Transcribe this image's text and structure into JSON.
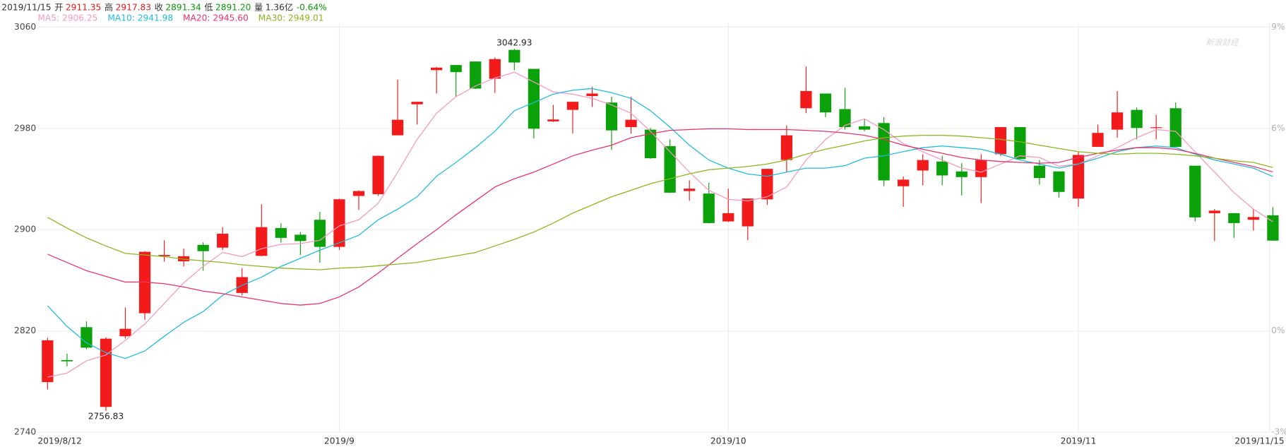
{
  "chart_data": {
    "type": "candlestick",
    "header": {
      "date": "2019/11/15",
      "items": [
        {
          "label": "开",
          "value": "2911.35",
          "color": "#e41b1b"
        },
        {
          "label": "高",
          "value": "2917.83",
          "color": "#e41b1b"
        },
        {
          "label": "收",
          "value": "2891.34",
          "color": "#0a9a0a"
        },
        {
          "label": "低",
          "value": "2891.20",
          "color": "#0a9a0a"
        },
        {
          "label": "量",
          "value": "1.36亿",
          "color": "#333333"
        }
      ],
      "change": "-0.64%",
      "change_color": "#0a9a0a"
    },
    "watermark": "新浪财经",
    "categories": [
      "2019/8/12",
      null,
      null,
      null,
      null,
      null,
      null,
      null,
      null,
      null,
      null,
      null,
      null,
      null,
      null,
      "2019/9",
      null,
      null,
      null,
      null,
      null,
      null,
      null,
      null,
      null,
      null,
      null,
      null,
      null,
      null,
      null,
      null,
      null,
      null,
      null,
      "2019/10",
      null,
      null,
      null,
      null,
      null,
      null,
      null,
      null,
      null,
      null,
      null,
      null,
      null,
      null,
      null,
      null,
      null,
      "2019/11",
      null,
      null,
      null,
      null,
      null,
      null,
      null,
      null,
      null,
      "2019/11/15"
    ],
    "up_color": "#f21a1a",
    "down_color": "#0aa10a",
    "open": [
      2779.6,
      2797,
      2823,
      2760,
      2815.8,
      2834,
      2879,
      2875,
      2888,
      2885.8,
      2850,
      2879.3,
      2901.3,
      2896,
      2907.8,
      2886.4,
      2926.6,
      2928,
      2974.5,
      2999,
      3026,
      3030,
      3032.8,
      3019.2,
      3042,
      3027,
      2985.5,
      2994.6,
      3005.5,
      3000.4,
      2981,
      2979,
      2966,
      2930.5,
      2928.5,
      2906.5,
      2902.6,
      2923.9,
      2955,
      2995.9,
      3007.5,
      2995.2,
      2981.6,
      2984.2,
      2934.3,
      2946.7,
      2953.8,
      2946,
      2941.5,
      2959.6,
      2981,
      2950.5,
      2946,
      2924.6,
      2965.4,
      2979,
      2994.6,
      2980.3,
      2995.9,
      2950.5,
      2913,
      2913,
      2907.8,
      2911.35
    ],
    "high": [
      2814.5,
      2802,
      2827.5,
      2815,
      2838.5,
      2883,
      2891.6,
      2885,
      2890,
      2902,
      2869.6,
      2920,
      2905,
      2898,
      2914,
      2924.5,
      2931,
      2958.5,
      3018.5,
      3001,
      3028.5,
      3030.2,
      3033,
      3036,
      3042.93,
      3027,
      2998.5,
      3001,
      3013,
      3005,
      3005,
      2980.3,
      2971.3,
      2939,
      2937,
      2932.4,
      2924.6,
      2948,
      2982.3,
      3028.9,
      3007.5,
      3012,
      2987.5,
      2988.8,
      2942,
      2959.6,
      2958.3,
      2952.5,
      2959.6,
      2981,
      2981,
      2955,
      2946,
      2961.6,
      2983,
      3009.5,
      2996.5,
      2990.7,
      3000.4,
      2950.5,
      2916.2,
      2913,
      2916.2,
      2917.83
    ],
    "low": [
      2773.7,
      2792,
      2805.5,
      2756.83,
      2814,
      2828.8,
      2874.8,
      2871,
      2867.6,
      2884,
      2848,
      2879,
      2889.7,
      2880,
      2874,
      2884,
      2915.6,
      2926.6,
      2974.5,
      2983,
      3007.5,
      3005,
      3011,
      3008,
      3026,
      2972,
      2985,
      2976,
      2997,
      2963,
      2975.8,
      2956,
      2929,
      2922.7,
      2905,
      2906,
      2891.6,
      2919.5,
      2945.4,
      2992,
      2988.8,
      2979,
      2977.7,
      2934.3,
      2918,
      2935,
      2935,
      2927,
      2921,
      2958.3,
      2955.7,
      2935.6,
      2925.3,
      2918,
      2965.4,
      2972.6,
      2971.3,
      2971.3,
      2965.4,
      2906.5,
      2891,
      2893.5,
      2899.4,
      2891.2
    ],
    "close": [
      2812.6,
      2796,
      2806.8,
      2813.9,
      2821.7,
      2882.5,
      2880,
      2879,
      2883,
      2896.8,
      2862.5,
      2902,
      2893.5,
      2891,
      2886.4,
      2924,
      2930.5,
      2958.3,
      2986.8,
      3001,
      3028,
      3024.4,
      3011.4,
      3034.7,
      3032,
      2979.7,
      2987,
      3001,
      3007.5,
      2978.4,
      2986.8,
      2956.4,
      2929.2,
      2932.4,
      2905.2,
      2913,
      2924.6,
      2948,
      2974.5,
      3009.5,
      2992.6,
      2981,
      2979,
      2938.9,
      2939.5,
      2955,
      2942.8,
      2941.5,
      2955,
      2981,
      2955.7,
      2940.8,
      2929.8,
      2959,
      2976.4,
      2992.6,
      2980.3,
      2980.9,
      2965.4,
      2909.7,
      2915,
      2905.2,
      2909.96,
      2891.34
    ],
    "series": [
      {
        "name": "MA5: 2906.25",
        "color": "#f49ac0",
        "values": [
          2783.5,
          2786.7,
          2796.4,
          2801,
          2812.6,
          2825.5,
          2841.7,
          2858,
          2871,
          2882,
          2878.7,
          2885,
          2888.4,
          2889,
          2891.6,
          2903,
          2907.8,
          2920.8,
          2945.4,
          2971.3,
          2992,
          3005,
          3013.4,
          3019.8,
          3024.4,
          3016.6,
          3008.8,
          3007,
          3003.7,
          2998.5,
          2992,
          2977.7,
          2961.6,
          2945.4,
          2931,
          2924,
          2922.7,
          2926,
          2933.7,
          2955,
          2971.3,
          2982.3,
          2987.5,
          2979,
          2968,
          2961.6,
          2955,
          2948.6,
          2945.4,
          2951.8,
          2958.3,
          2957,
          2950,
          2951.8,
          2958.3,
          2964.8,
          2972.6,
          2979,
          2977.7,
          2961.6,
          2945.4,
          2929.2,
          2916.2,
          2906.25
        ]
      },
      {
        "name": "MA10: 2941.98",
        "color": "#1fbcdc",
        "values": [
          2839.8,
          2823.6,
          2810.6,
          2802.9,
          2798.3,
          2804.2,
          2815.8,
          2826.8,
          2835.3,
          2848.2,
          2856,
          2862.5,
          2871,
          2877.4,
          2883.8,
          2889.7,
          2895.5,
          2907.8,
          2916.2,
          2926,
          2942.2,
          2953.1,
          2964.8,
          2977.7,
          2993.9,
          3000.4,
          3007,
          3010.1,
          3011.4,
          3008.2,
          3003.7,
          2993.9,
          2981,
          2966.7,
          2955,
          2948.6,
          2944,
          2942.2,
          2945.4,
          2948.6,
          2948.6,
          2950.5,
          2956.4,
          2958.3,
          2961.6,
          2964.8,
          2966.1,
          2964.8,
          2963.5,
          2959.6,
          2955,
          2951.8,
          2948.6,
          2951.8,
          2956.4,
          2961.6,
          2964.8,
          2966.1,
          2964.8,
          2959.6,
          2955,
          2951.8,
          2948.6,
          2941.98
        ]
      },
      {
        "name": "MA20: 2945.60",
        "color": "#e8336b",
        "values": [
          2880.6,
          2874.1,
          2867.6,
          2863.1,
          2858.6,
          2858.6,
          2857.3,
          2854.7,
          2851.5,
          2849.5,
          2846.9,
          2844.3,
          2841.7,
          2840.4,
          2841.7,
          2846.9,
          2854.7,
          2865.7,
          2877.4,
          2889,
          2900,
          2911.7,
          2922.7,
          2933.7,
          2940.2,
          2945.4,
          2951.8,
          2958.3,
          2962.8,
          2966.7,
          2972.6,
          2975.8,
          2978.4,
          2979,
          2979.7,
          2979.7,
          2979,
          2979,
          2979,
          2978.4,
          2977.7,
          2976.4,
          2974.5,
          2971.3,
          2966.7,
          2963.5,
          2960.3,
          2957,
          2955,
          2953.8,
          2953.1,
          2952.5,
          2953.1,
          2957,
          2960.3,
          2962.8,
          2964.8,
          2964.8,
          2963.5,
          2960.3,
          2956.4,
          2953.1,
          2949.9,
          2945.6
        ]
      },
      {
        "name": "MA30: 2949.01",
        "color": "#8ab71e",
        "values": [
          2909.7,
          2901.3,
          2893.5,
          2887.1,
          2881.2,
          2880,
          2878.7,
          2876.7,
          2875.4,
          2874.1,
          2872.2,
          2871,
          2869.6,
          2869,
          2868.3,
          2869.6,
          2870.2,
          2871.5,
          2872.8,
          2874.1,
          2876.7,
          2879.3,
          2881.9,
          2887.1,
          2892.3,
          2898.1,
          2905.2,
          2913,
          2919.5,
          2926,
          2931.1,
          2936.3,
          2940.2,
          2944.1,
          2947.3,
          2948.6,
          2949.9,
          2951.8,
          2955,
          2959.6,
          2963.5,
          2966.7,
          2970,
          2972.6,
          2973.9,
          2974.5,
          2974.5,
          2973.9,
          2972.6,
          2971.3,
          2969.4,
          2966.7,
          2964.1,
          2961.6,
          2960.3,
          2959.6,
          2960.3,
          2960.3,
          2959.6,
          2958.3,
          2956.4,
          2954.4,
          2953.1,
          2949.01
        ]
      }
    ],
    "annotations": [
      {
        "value": 3042.93,
        "label": "3042.93"
      },
      {
        "value": 2756.83,
        "label": "2756.83"
      }
    ],
    "ylim": [
      2740,
      3060
    ],
    "yticks": [
      2740,
      2820,
      2900,
      2980,
      3060
    ],
    "y2lim": [
      -3,
      9
    ],
    "y2ticks": [
      {
        "value": -3,
        "label": "-3%"
      },
      {
        "value": 0,
        "label": "0%"
      },
      {
        "value": 6,
        "label": "6%"
      },
      {
        "value": 9,
        "label": "9%"
      }
    ],
    "grid": true
  }
}
